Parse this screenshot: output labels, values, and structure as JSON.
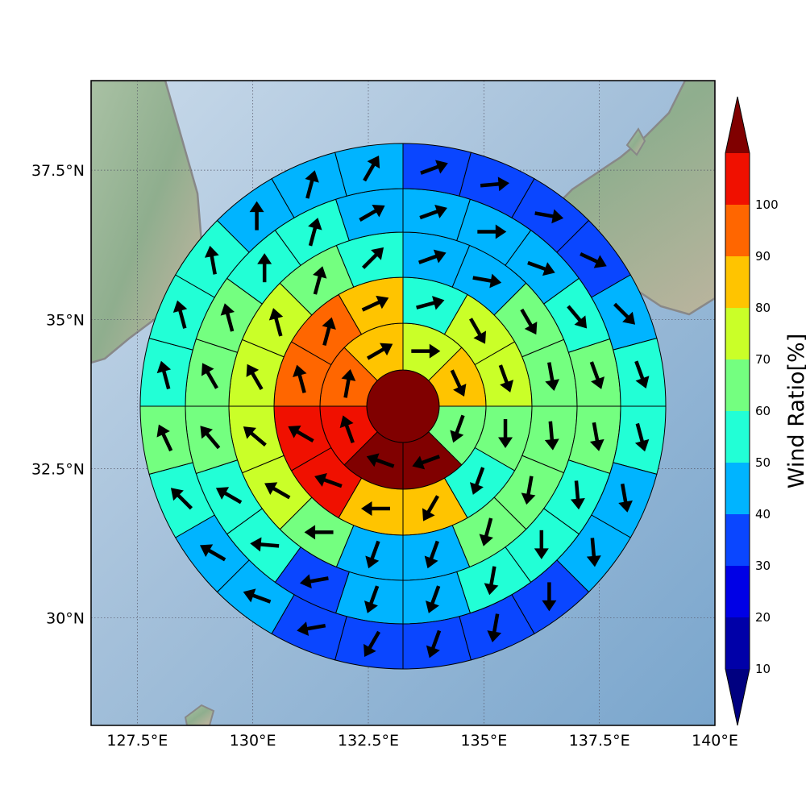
{
  "map": {
    "x_ticks": [
      "127.5°E",
      "130°E",
      "132.5°E",
      "135°E",
      "137.5°E",
      "140°E"
    ],
    "y_ticks": [
      "37.5°N",
      "35°N",
      "32.5°N",
      "30°N"
    ],
    "x_tick_values": [
      127.5,
      130,
      132.5,
      135,
      137.5,
      140
    ],
    "y_tick_values": [
      37.5,
      35,
      32.5,
      30
    ],
    "lon_range": [
      126.5,
      140
    ],
    "lat_range": [
      28.2,
      39
    ],
    "background": "shaded relief with grey coastlines"
  },
  "colorbar": {
    "label": "Wind Ratio[%]",
    "ticks": [
      "10",
      "20",
      "30",
      "40",
      "50",
      "60",
      "70",
      "80",
      "90",
      "100"
    ],
    "levels": [
      0,
      10,
      20,
      30,
      40,
      50,
      60,
      70,
      80,
      90,
      100
    ],
    "colors": [
      "#0000a8",
      "#0000e6",
      "#0a46ff",
      "#00b4ff",
      "#22ffd6",
      "#74ff80",
      "#caff28",
      "#ffc400",
      "#ff6600",
      "#f01000"
    ],
    "under_color": "#000080",
    "over_color": "#800000",
    "extend": "both"
  },
  "chart_data": {
    "type": "polar_grid",
    "center_value": 100,
    "center_direction_deg": null,
    "rings": [
      {
        "ring": 1,
        "values": [
          65,
          75,
          55,
          100,
          100,
          95,
          80,
          75
        ],
        "direction_deg": [
          90,
          155,
          200,
          250,
          290,
          340,
          10,
          60
        ]
      },
      {
        "ring": 2,
        "values": [
          45,
          65,
          65,
          55,
          45,
          75,
          75,
          95,
          95,
          85,
          85,
          75
        ],
        "direction_deg": [
          75,
          150,
          160,
          180,
          200,
          210,
          270,
          290,
          300,
          345,
          15,
          65
        ]
      },
      {
        "ring": 3,
        "values": [
          35,
          35,
          55,
          55,
          55,
          55,
          55,
          35,
          35,
          55,
          65,
          65,
          65,
          65,
          55,
          45
        ],
        "direction_deg": [
          70,
          100,
          150,
          170,
          175,
          190,
          195,
          200,
          200,
          270,
          300,
          310,
          330,
          345,
          15,
          45
        ]
      },
      {
        "ring": 4,
        "values": [
          35,
          35,
          35,
          45,
          55,
          55,
          45,
          45,
          45,
          35,
          35,
          25,
          45,
          45,
          55,
          55,
          55,
          45,
          45,
          35
        ],
        "direction_deg": [
          70,
          90,
          110,
          140,
          160,
          170,
          175,
          180,
          190,
          200,
          200,
          260,
          275,
          300,
          320,
          330,
          345,
          360,
          15,
          60
        ]
      },
      {
        "ring": 5,
        "values": [
          25,
          25,
          25,
          25,
          35,
          45,
          45,
          35,
          35,
          25,
          25,
          25,
          25,
          25,
          35,
          35,
          45,
          55,
          45,
          45,
          45,
          35,
          35,
          35
        ],
        "direction_deg": [
          70,
          85,
          100,
          115,
          135,
          160,
          165,
          170,
          175,
          180,
          190,
          200,
          210,
          260,
          290,
          300,
          315,
          335,
          345,
          345,
          350,
          360,
          15,
          30
        ]
      }
    ]
  }
}
